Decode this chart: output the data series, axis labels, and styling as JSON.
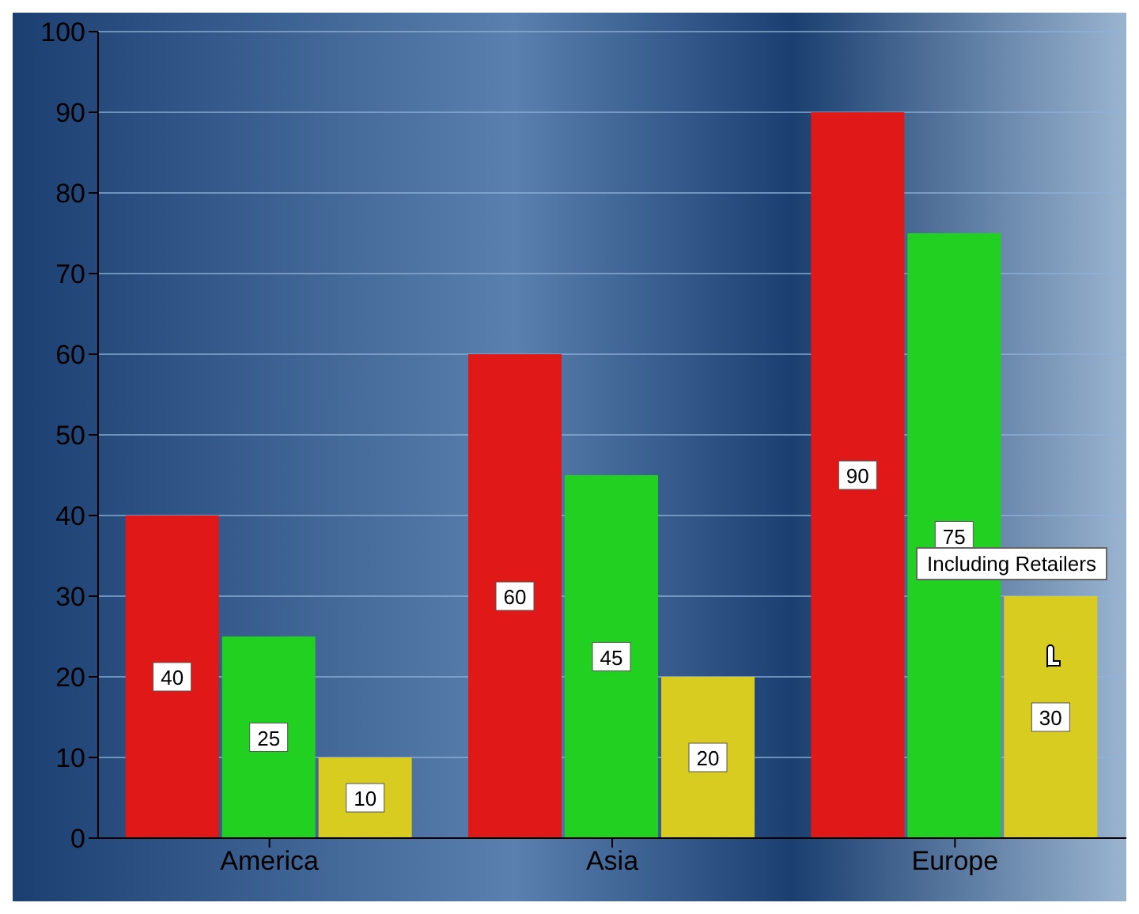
{
  "chart_data": {
    "type": "bar",
    "categories": [
      "America",
      "Asia",
      "Europe"
    ],
    "series": [
      {
        "color": "#e01818",
        "values": [
          40,
          60,
          90
        ]
      },
      {
        "color": "#22d022",
        "values": [
          25,
          45,
          75
        ]
      },
      {
        "color": "#d8cc20",
        "values": [
          10,
          20,
          30
        ]
      }
    ],
    "ylim": [
      0,
      100
    ],
    "yticks": [
      0,
      10,
      20,
      30,
      40,
      50,
      60,
      70,
      80,
      90,
      100
    ],
    "grid": "y",
    "data_labels": true,
    "annotations": [
      "Including Retailers"
    ]
  }
}
